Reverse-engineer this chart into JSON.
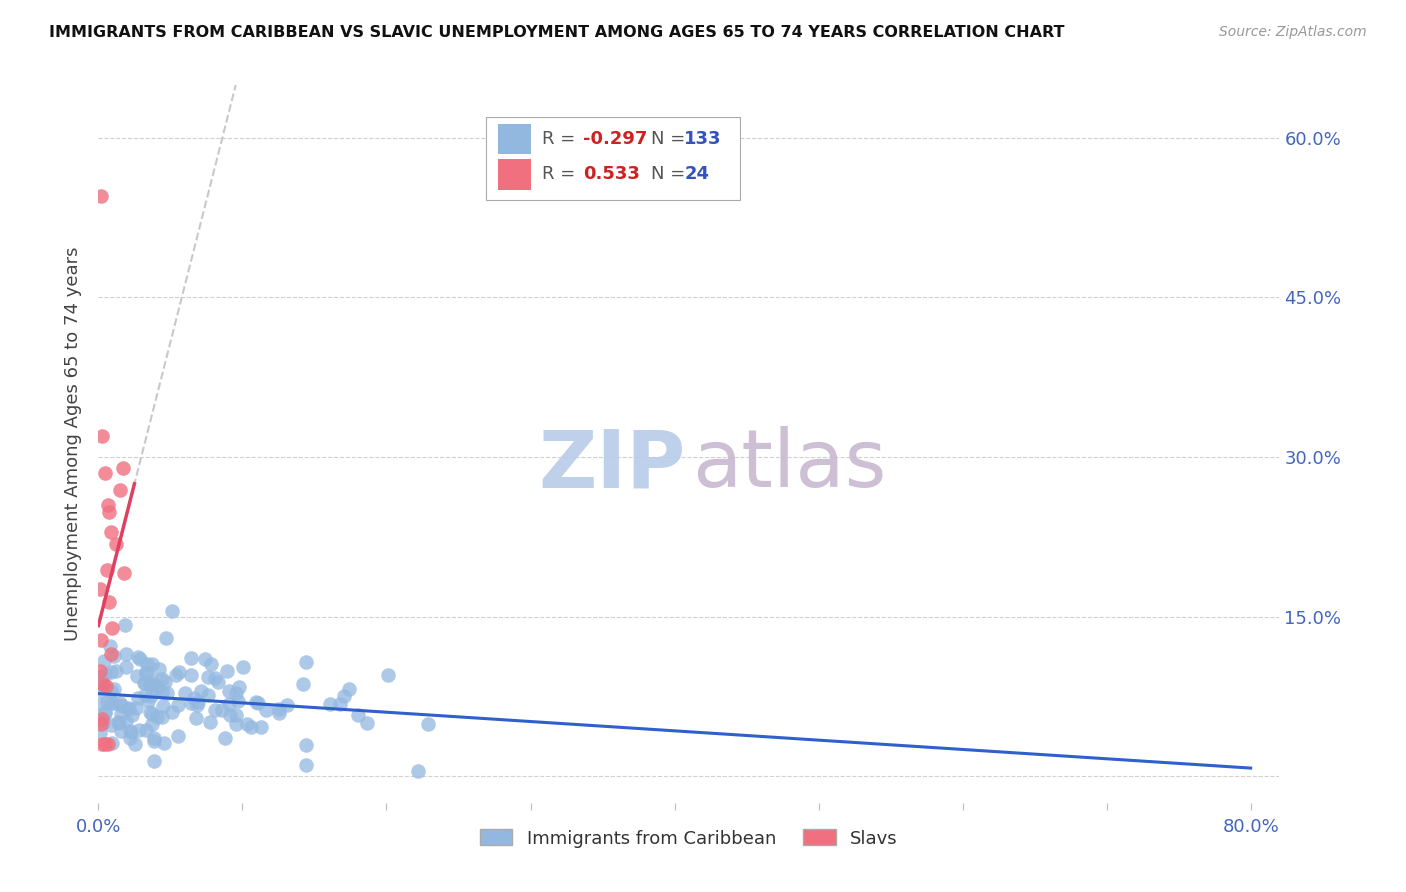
{
  "title": "IMMIGRANTS FROM CARIBBEAN VS SLAVIC UNEMPLOYMENT AMONG AGES 65 TO 74 YEARS CORRELATION CHART",
  "source": "Source: ZipAtlas.com",
  "ylabel": "Unemployment Among Ages 65 to 74 years",
  "xlim": [
    0.0,
    0.82
  ],
  "ylim": [
    -0.025,
    0.65
  ],
  "yticks": [
    0.0,
    0.15,
    0.3,
    0.45,
    0.6
  ],
  "ytick_labels_right": [
    "",
    "15.0%",
    "30.0%",
    "45.0%",
    "60.0%"
  ],
  "xtick_labels": [
    "0.0%",
    "",
    "",
    "",
    "",
    "",
    "",
    "",
    "80.0%"
  ],
  "caribbean_color": "#93b8e0",
  "slavic_color": "#f07080",
  "caribbean_R": -0.297,
  "caribbean_N": 133,
  "slavic_R": 0.533,
  "slavic_N": 24,
  "background_color": "#ffffff",
  "grid_color": "#d0d0d0",
  "tick_color": "#4466bb",
  "title_color": "#111111",
  "source_color": "#999999",
  "ylabel_color": "#444444",
  "trendline_caribbean_color": "#3060cc",
  "trendline_slavic_color": "#e04060",
  "trendline_dashed_color": "#c8c8c8",
  "watermark_zip_color": "#b8cce8",
  "watermark_atlas_color": "#c8b8d0",
  "legend_R_color": "#cc2222",
  "legend_N_color": "#3355bb"
}
